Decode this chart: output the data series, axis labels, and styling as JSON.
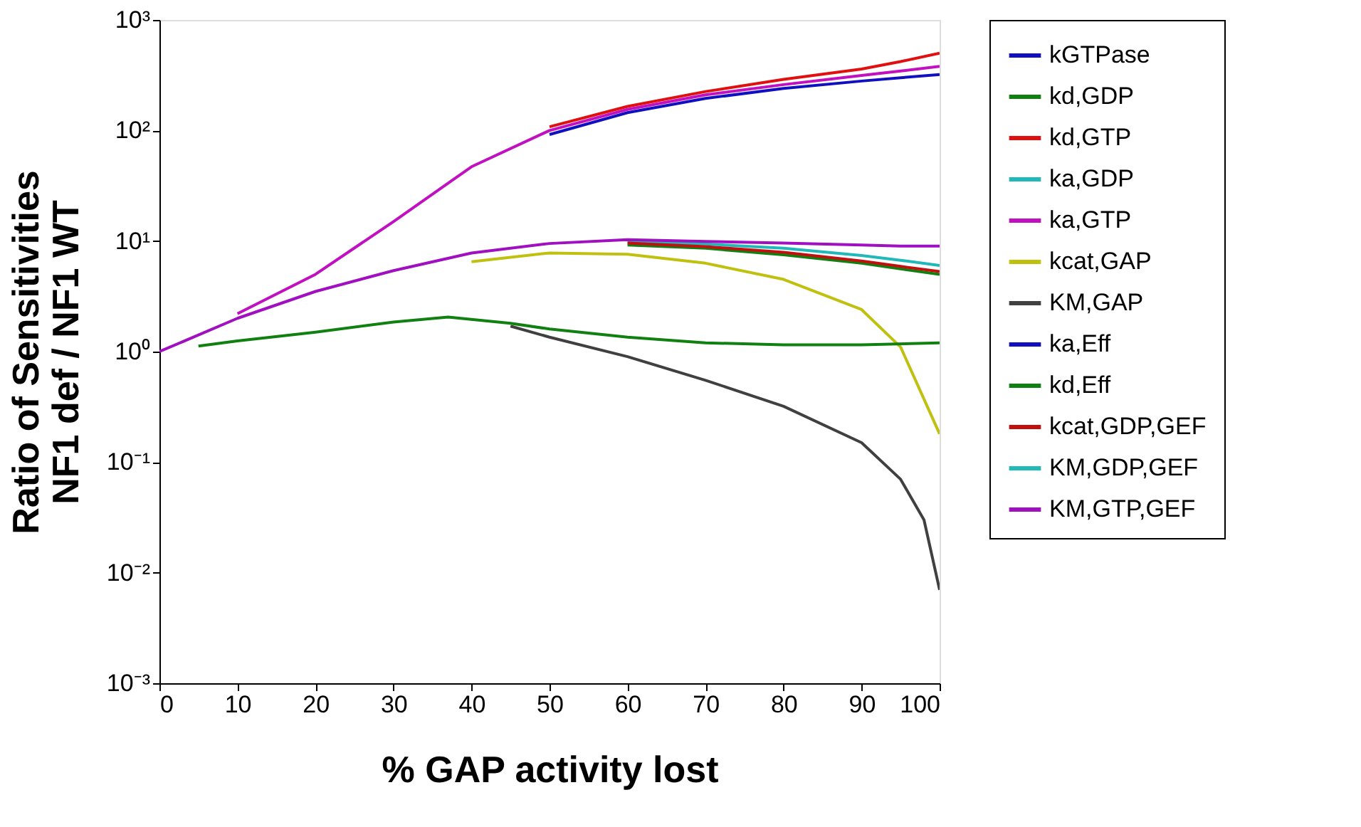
{
  "chart_data": {
    "type": "line",
    "xlabel": "% GAP activity lost",
    "ylabel": [
      "Ratio of Sensitivities",
      "NF1 def / NF1 WT"
    ],
    "x": [
      0,
      10,
      20,
      30,
      40,
      50,
      60,
      70,
      80,
      90,
      95,
      100
    ],
    "xlim": [
      0,
      100
    ],
    "xticks": [
      0,
      10,
      20,
      30,
      40,
      50,
      60,
      70,
      80,
      90,
      100
    ],
    "ylim": [
      0.001,
      1000
    ],
    "yticks": [
      {
        "value": 0.001,
        "label": "10⁻³"
      },
      {
        "value": 0.01,
        "label": "10⁻²"
      },
      {
        "value": 0.1,
        "label": "10⁻¹"
      },
      {
        "value": 1,
        "label": "10⁰"
      },
      {
        "value": 10,
        "label": "10¹"
      },
      {
        "value": 100,
        "label": "10²"
      },
      {
        "value": 1000,
        "label": "10³"
      }
    ],
    "log": true,
    "grid": false,
    "legend": "right",
    "marker": "none",
    "line_style": "solid",
    "series": [
      {
        "name": "kGTPase",
        "color": "#1010c0",
        "x": [
          50,
          60,
          70,
          80,
          90,
          95,
          100
        ],
        "values": [
          92,
          145,
          195,
          240,
          280,
          300,
          320
        ]
      },
      {
        "name": "kd,GDP",
        "color": "#108010",
        "x": [
          60,
          70,
          80,
          90,
          95,
          100
        ],
        "values": [
          9.2,
          8.6,
          7.5,
          6.3,
          5.6,
          5
        ]
      },
      {
        "name": "kd,GTP",
        "color": "#e01010",
        "x": [
          50,
          60,
          70,
          80,
          90,
          95,
          100
        ],
        "values": [
          108,
          165,
          225,
          290,
          360,
          420,
          500
        ]
      },
      {
        "name": "ka,GDP",
        "color": "#20b8b8",
        "x": [
          60,
          70,
          80,
          90,
          95,
          100
        ],
        "values": [
          9.9,
          9.4,
          8.6,
          7.4,
          6.7,
          6
        ]
      },
      {
        "name": "ka,GTP",
        "color": "#c010c0",
        "x": [
          10,
          20,
          30,
          40,
          50,
          60,
          70,
          80,
          90,
          95,
          100
        ],
        "values": [
          2.2,
          5,
          15,
          47,
          100,
          155,
          210,
          260,
          315,
          345,
          380
        ]
      },
      {
        "name": "kcat,GAP",
        "color": "#c0c010",
        "x": [
          40,
          50,
          60,
          70,
          80,
          90,
          95,
          100
        ],
        "values": [
          6.5,
          7.8,
          7.6,
          6.3,
          4.5,
          2.4,
          1.1,
          0.18
        ]
      },
      {
        "name": "KM,GAP",
        "color": "#404040",
        "x": [
          45,
          50,
          60,
          70,
          80,
          90,
          95,
          98,
          100
        ],
        "values": [
          1.7,
          1.35,
          0.9,
          0.55,
          0.32,
          0.15,
          0.07,
          0.03,
          0.007
        ]
      },
      {
        "name": "ka,Eff",
        "color": "#1010c0",
        "values": [
          null,
          null,
          null,
          null,
          null,
          null,
          null,
          null,
          null,
          null,
          null,
          null
        ]
      },
      {
        "name": "kd,Eff",
        "color": "#108010",
        "x": [
          5,
          10,
          20,
          30,
          37,
          45,
          50,
          60,
          70,
          80,
          90,
          100
        ],
        "values": [
          1.12,
          1.25,
          1.5,
          1.85,
          2.05,
          1.8,
          1.6,
          1.35,
          1.2,
          1.15,
          1.15,
          1.2
        ]
      },
      {
        "name": "kcat,GDP,GEF",
        "color": "#c01010",
        "x": [
          60,
          70,
          80,
          90,
          95,
          100
        ],
        "values": [
          9.6,
          8.9,
          7.9,
          6.6,
          5.9,
          5.3
        ]
      },
      {
        "name": "KM,GDP,GEF",
        "color": "#20b8b8",
        "values": [
          null,
          null,
          null,
          null,
          null,
          null,
          null,
          null,
          null,
          null,
          null,
          null
        ]
      },
      {
        "name": "KM,GTP,GEF",
        "color": "#a010c0",
        "values": [
          1,
          2,
          3.5,
          5.4,
          7.8,
          9.5,
          10.3,
          9.9,
          9.6,
          9.2,
          9,
          9
        ]
      }
    ]
  }
}
